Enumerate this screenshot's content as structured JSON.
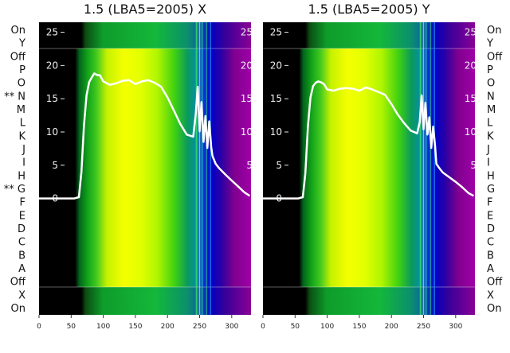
{
  "chart_data": [
    {
      "type": "line",
      "title": "1.5 (LBA5=2005) X",
      "xlim": [
        0,
        330
      ],
      "ylim": [
        -17.5,
        26.5
      ],
      "x_ticks": [
        "0",
        "50",
        "100",
        "150",
        "200",
        "250",
        "300"
      ],
      "y_ticks": [
        "0",
        "5",
        "10",
        "15",
        "20",
        "25"
      ],
      "row_labels": [
        "On",
        "X",
        "Off",
        "A",
        "B",
        "C",
        "D",
        "E",
        "F",
        "** G",
        "H",
        "I",
        "J",
        "K",
        "L",
        "M",
        "** N",
        "O",
        "P",
        "Off",
        "Y",
        "On"
      ],
      "series": [
        {
          "color": "#ffffff",
          "x": [
            0,
            20,
            40,
            55,
            62,
            66,
            70,
            74,
            78,
            82,
            86,
            90,
            95,
            100,
            110,
            120,
            130,
            140,
            150,
            160,
            170,
            180,
            190,
            200,
            210,
            220,
            230,
            240,
            244,
            247,
            250,
            253,
            256,
            259,
            262,
            265,
            268,
            270,
            275,
            280,
            290,
            300,
            310,
            320,
            328
          ],
          "y": [
            0,
            0,
            0,
            0,
            0.2,
            4,
            11,
            15.5,
            17.5,
            18.2,
            18.8,
            18.6,
            18.5,
            17.6,
            17.1,
            17.3,
            17.7,
            17.8,
            17.2,
            17.6,
            17.8,
            17.4,
            16.8,
            15.2,
            13.2,
            11.2,
            9.6,
            9.3,
            12.8,
            16.8,
            10.1,
            14.5,
            8.5,
            12.4,
            7.6,
            11.6,
            7.8,
            6.4,
            5.2,
            4.6,
            3.6,
            2.7,
            1.8,
            0.9,
            0.4
          ]
        }
      ]
    },
    {
      "type": "line",
      "title": "1.5 (LBA5=2005) Y",
      "xlim": [
        0,
        330
      ],
      "ylim": [
        -17.5,
        26.5
      ],
      "x_ticks": [
        "0",
        "50",
        "100",
        "150",
        "200",
        "250",
        "300"
      ],
      "y_ticks": [
        "0",
        "5",
        "10",
        "15",
        "20",
        "25"
      ],
      "row_labels": [
        "On",
        "X",
        "Off",
        "A",
        "B",
        "C",
        "D",
        "E",
        "F",
        "G",
        "H",
        "I",
        "J",
        "K",
        "L",
        "M",
        "N",
        "O",
        "P",
        "Off",
        "Y",
        "On"
      ],
      "series": [
        {
          "color": "#ffffff",
          "x": [
            0,
            20,
            40,
            55,
            62,
            66,
            70,
            74,
            78,
            82,
            86,
            90,
            95,
            100,
            110,
            120,
            130,
            140,
            150,
            160,
            170,
            180,
            190,
            200,
            210,
            220,
            230,
            240,
            244,
            247,
            250,
            253,
            256,
            259,
            262,
            265,
            268,
            270,
            275,
            280,
            290,
            300,
            310,
            320,
            328
          ],
          "y": [
            0,
            0,
            0,
            0,
            0.2,
            3.8,
            10.8,
            15.2,
            16.9,
            17.4,
            17.6,
            17.5,
            17.2,
            16.4,
            16.2,
            16.5,
            16.6,
            16.5,
            16.2,
            16.7,
            16.4,
            16.0,
            15.6,
            14.2,
            12.6,
            11.3,
            10.2,
            9.8,
            11.5,
            15.5,
            10.4,
            14.4,
            9.6,
            12.2,
            7.6,
            10.8,
            7.9,
            5.2,
            4.5,
            3.9,
            3.2,
            2.5,
            1.7,
            0.8,
            0.4
          ]
        }
      ]
    }
  ]
}
